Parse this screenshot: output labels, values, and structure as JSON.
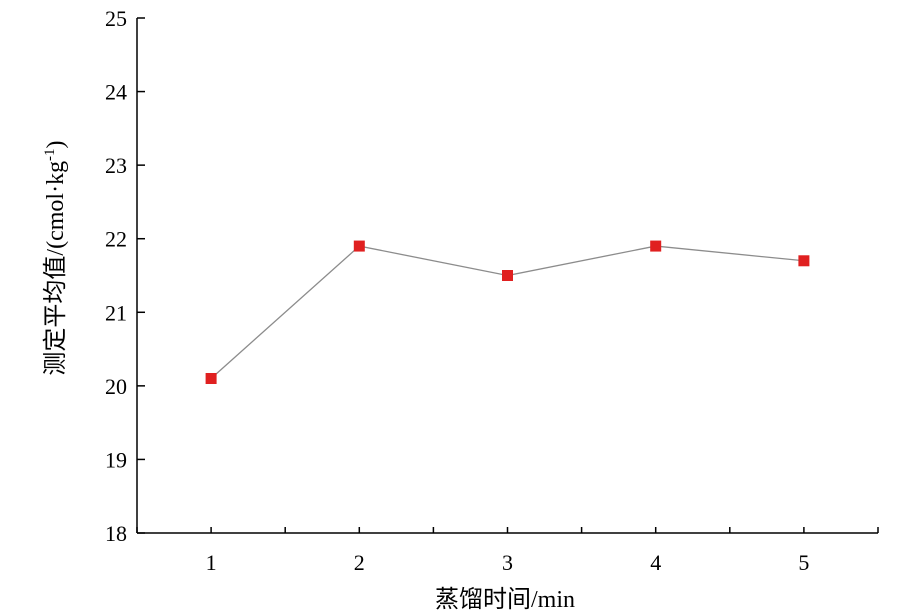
{
  "chart_data": {
    "type": "line",
    "title": "",
    "xlabel": "蒸馏时间/min",
    "ylabel": "测定平均值/(cmol·kg",
    "ylabel_sup": "-1",
    "ylabel_close": ")",
    "x": [
      1,
      2,
      3,
      4,
      5
    ],
    "x_ticks": [
      "1",
      "2",
      "3",
      "4",
      "5"
    ],
    "xlim": [
      0.5,
      5.5
    ],
    "ylim": [
      18,
      25
    ],
    "y_ticks": [
      "18",
      "19",
      "20",
      "21",
      "22",
      "23",
      "24",
      "25"
    ],
    "grid": false,
    "series": [
      {
        "values": [
          20.1,
          21.9,
          21.5,
          21.9,
          21.7
        ]
      }
    ],
    "colors": {
      "marker": "#e02020",
      "line": "#8c8c8c",
      "axis": "#000000"
    }
  }
}
